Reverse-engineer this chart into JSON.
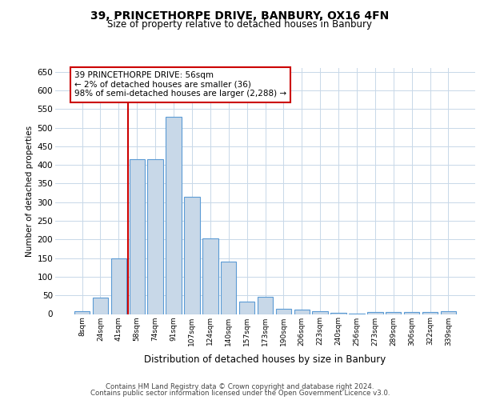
{
  "title": "39, PRINCETHORPE DRIVE, BANBURY, OX16 4FN",
  "subtitle": "Size of property relative to detached houses in Banbury",
  "xlabel": "Distribution of detached houses by size in Banbury",
  "ylabel": "Number of detached properties",
  "categories": [
    "8sqm",
    "24sqm",
    "41sqm",
    "58sqm",
    "74sqm",
    "91sqm",
    "107sqm",
    "124sqm",
    "140sqm",
    "157sqm",
    "173sqm",
    "190sqm",
    "206sqm",
    "223sqm",
    "240sqm",
    "256sqm",
    "273sqm",
    "289sqm",
    "306sqm",
    "322sqm",
    "339sqm"
  ],
  "values": [
    7,
    44,
    150,
    415,
    415,
    530,
    315,
    203,
    141,
    34,
    47,
    14,
    12,
    8,
    4,
    2,
    5,
    5,
    5,
    5,
    7
  ],
  "bar_color": "#c8d8e8",
  "bar_edge_color": "#5b9bd5",
  "vline_color": "#cc0000",
  "vline_x": 2.5,
  "annotation_text": "39 PRINCETHORPE DRIVE: 56sqm\n← 2% of detached houses are smaller (36)\n98% of semi-detached houses are larger (2,288) →",
  "annotation_box_facecolor": "#ffffff",
  "annotation_box_edgecolor": "#cc0000",
  "ylim": [
    0,
    660
  ],
  "yticks": [
    0,
    50,
    100,
    150,
    200,
    250,
    300,
    350,
    400,
    450,
    500,
    550,
    600,
    650
  ],
  "bg_color": "#ffffff",
  "grid_color": "#c8d8e8",
  "footer1": "Contains HM Land Registry data © Crown copyright and database right 2024.",
  "footer2": "Contains public sector information licensed under the Open Government Licence v3.0."
}
